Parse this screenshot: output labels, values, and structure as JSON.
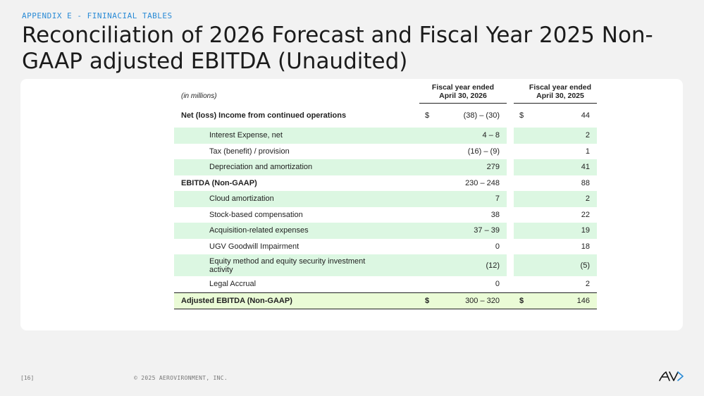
{
  "header": {
    "eyebrow": "APPENDIX E - FININACIAL TABLES",
    "title": "Reconciliation of 2026 Forecast and Fiscal Year 2025 Non-GAAP adjusted EBITDA (Unaudited)"
  },
  "table": {
    "units_label": "(in millions)",
    "col1_header": "Fiscal year ended April 30, 2026",
    "col2_header": "Fiscal year ended April 30, 2025",
    "rows": [
      {
        "label": "Net (loss) Income from continued operations",
        "d1": "$",
        "v1": "(38) – (30)",
        "d2": "$",
        "v2": "44"
      },
      {
        "label": "Interest Expense, net",
        "v1": "4 – 8",
        "v2": "2"
      },
      {
        "label": "Tax (benefit) / provision",
        "v1": "(16) – (9)",
        "v2": "1"
      },
      {
        "label": "Depreciation and amortization",
        "v1": "279",
        "v2": "41"
      },
      {
        "label": "EBITDA (Non-GAAP)",
        "v1": "230 – 248",
        "v2": "88"
      },
      {
        "label": "Cloud amortization",
        "v1": "7",
        "v2": "2"
      },
      {
        "label": "Stock-based compensation",
        "v1": "38",
        "v2": "22"
      },
      {
        "label": "Acquisition-related expenses",
        "v1": "37 – 39",
        "v2": "19"
      },
      {
        "label": "UGV Goodwill Impairment",
        "v1": "0",
        "v2": "18"
      },
      {
        "label": "Equity method and equity security investment activity",
        "v1": "(12)",
        "v2": "(5)"
      },
      {
        "label": "Legal Accrual",
        "v1": "0",
        "v2": "2"
      },
      {
        "label": "Adjusted EBITDA (Non-GAAP)",
        "d1": "$",
        "v1": "300 – 320",
        "d2": "$",
        "v2": "146"
      }
    ]
  },
  "footer": {
    "page_number": "[16]",
    "copyright": "© 2025 AEROVIRONMENT, INC.",
    "logo_icon": "av-logo-icon"
  },
  "colors": {
    "accent": "#2a8bd6",
    "row_green": "#dcf7e2",
    "total_green": "#eafbd6"
  }
}
